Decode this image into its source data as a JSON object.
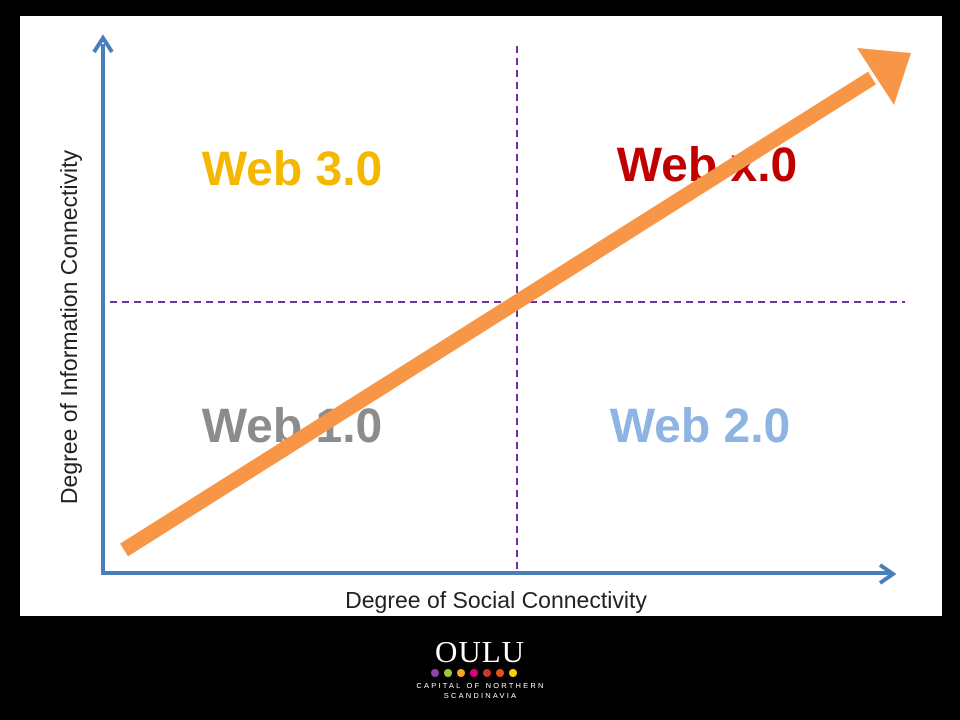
{
  "diagram": {
    "quadrants": {
      "top_left": {
        "label": "Web 3.0",
        "color": "#F5B800"
      },
      "top_right": {
        "label": "Web x.0",
        "color": "#C00000"
      },
      "bottom_left": {
        "label": "Web 1.0",
        "color": "#8C8C8C"
      },
      "bottom_right": {
        "label": "Web 2.0",
        "color": "#8DB4E2"
      }
    },
    "x_axis_label": "Degree of Social Connectivity",
    "y_axis_label": "Degree of Information Connectivity",
    "colors": {
      "axes": "#4A7EBB",
      "arrow": "#F79646",
      "divider": "#7030A0",
      "background": "#000000",
      "canvas": "#FFFFFF"
    }
  },
  "logo": {
    "word": "OULU",
    "line1": "CAPITAL OF NORTHERN",
    "line2": "SCANDINAVIA",
    "dot_colors": [
      "#8E44AD",
      "#A3C939",
      "#F5A623",
      "#E2007A",
      "#C0392B",
      "#E94E1B",
      "#F5D300"
    ]
  }
}
